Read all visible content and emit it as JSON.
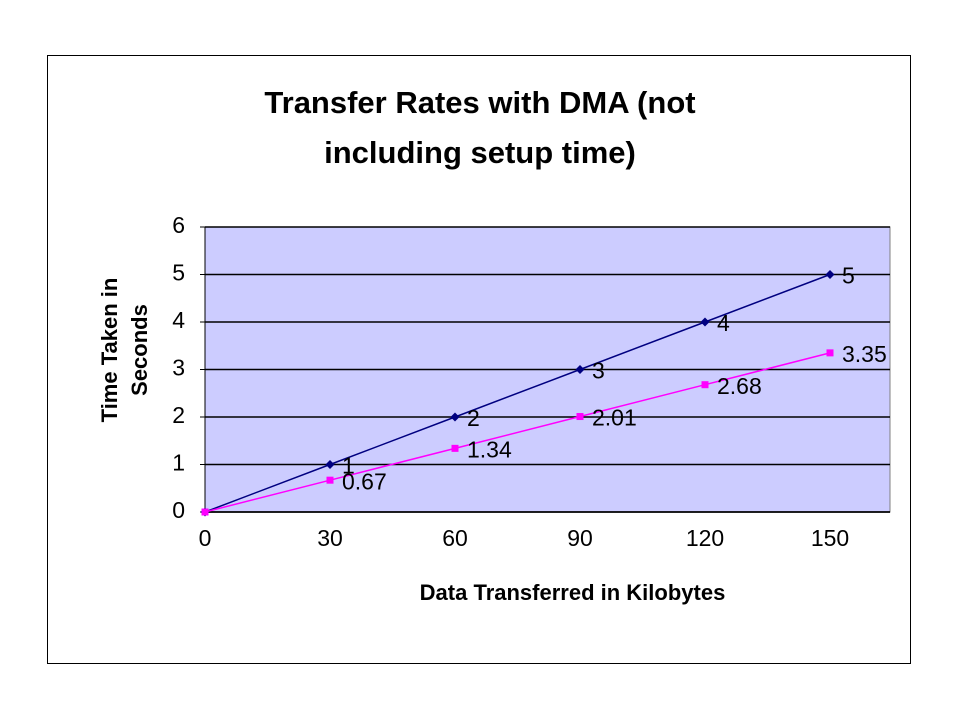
{
  "chart_data": {
    "type": "line",
    "title": "Transfer Rates with DMA (not including setup time)",
    "x_label": "Data Transferred in Kilobytes",
    "y_label": "Time Taken in Seconds",
    "x": [
      0,
      30,
      60,
      90,
      120,
      150
    ],
    "series": [
      {
        "color": "#000080",
        "marker": "diamond",
        "values": [
          0,
          1,
          2,
          3,
          4,
          5
        ],
        "value_labels": [
          null,
          "1",
          "2",
          "3",
          "4",
          "5"
        ]
      },
      {
        "color": "#ff00ff",
        "marker": "square",
        "values": [
          0,
          0.67,
          1.34,
          2.01,
          2.68,
          3.35
        ],
        "value_labels": [
          null,
          "0.67",
          "1.34",
          "2.01",
          "2.68",
          "3.35"
        ]
      }
    ],
    "xlim": [
      0,
      164.4
    ],
    "xticks": [
      0,
      30,
      60,
      90,
      120,
      150
    ],
    "ylim": [
      0,
      6
    ],
    "yticks": [
      0,
      1,
      2,
      3,
      4,
      5,
      6
    ],
    "grid": true,
    "plot_background": "#ccccff"
  }
}
